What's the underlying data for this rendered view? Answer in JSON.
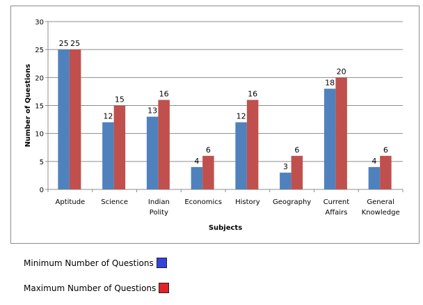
{
  "chart_data": {
    "type": "bar",
    "title": "",
    "xlabel": "Subjects",
    "ylabel": "Number of Questions",
    "ylim": [
      0,
      30
    ],
    "yticks": [
      0,
      5,
      10,
      15,
      20,
      25,
      30
    ],
    "grid": true,
    "categories": [
      [
        "Aptitude"
      ],
      [
        "Science"
      ],
      [
        "Indian",
        "Polity"
      ],
      [
        "Economics"
      ],
      [
        "History"
      ],
      [
        "Geography"
      ],
      [
        "Current",
        "Affairs"
      ],
      [
        "General",
        "Knowledge"
      ]
    ],
    "series": [
      {
        "name": "Minimum Number of Questions",
        "color": "#4f81bd",
        "values": [
          25,
          12,
          13,
          4,
          12,
          3,
          18,
          4
        ]
      },
      {
        "name": "Maximum Number of Questions",
        "color": "#c0504d",
        "values": [
          25,
          15,
          16,
          6,
          16,
          6,
          20,
          6
        ]
      }
    ]
  },
  "legend": {
    "items": [
      {
        "label": "Minimum Number of Questions",
        "color": "#3344dd"
      },
      {
        "label": "Maximum Number of Questions",
        "color": "#e0222a"
      }
    ]
  }
}
